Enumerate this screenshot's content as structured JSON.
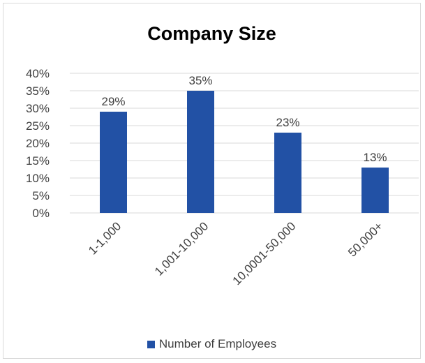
{
  "chart_data": {
    "type": "bar",
    "title": "Company Size",
    "categories": [
      "1-1,000",
      "1,001-10,000",
      "10,0001-50,000",
      "50,000+"
    ],
    "series": [
      {
        "name": "Number of Employees",
        "values": [
          29,
          35,
          23,
          13
        ],
        "color": "#2251a5"
      }
    ],
    "data_labels": [
      "29%",
      "35%",
      "23%",
      "13%"
    ],
    "ylim": [
      0,
      40
    ],
    "yticks": [
      "0%",
      "5%",
      "10%",
      "15%",
      "20%",
      "25%",
      "30%",
      "35%",
      "40%"
    ],
    "xlabel": "",
    "ylabel": "",
    "grid": true,
    "legend_position": "bottom",
    "gridline_color": "#d9d9d9"
  }
}
